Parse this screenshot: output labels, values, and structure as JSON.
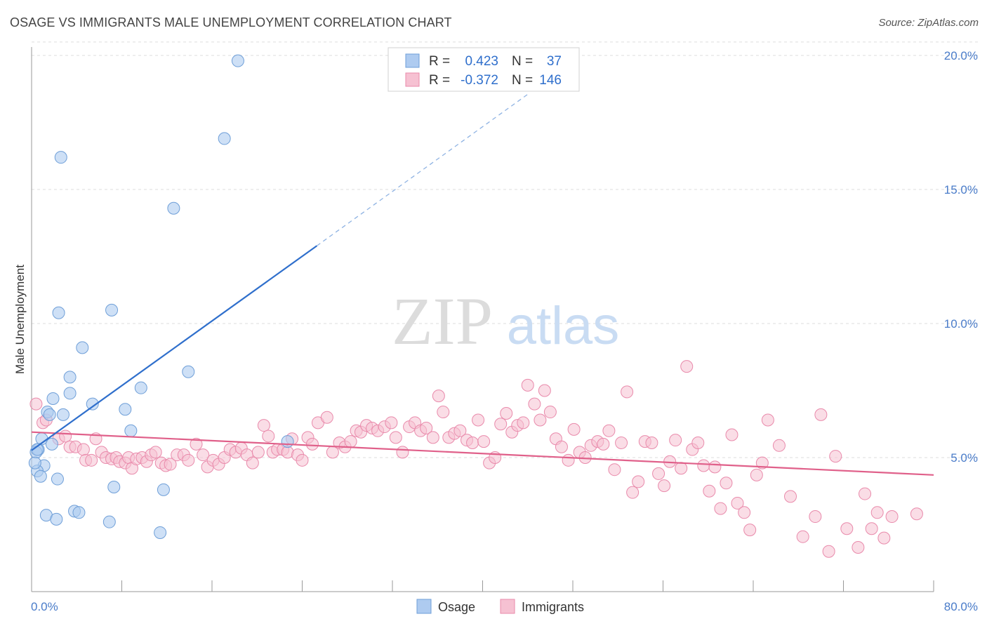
{
  "header": {
    "title": "OSAGE VS IMMIGRANTS MALE UNEMPLOYMENT CORRELATION CHART",
    "source": "Source: ZipAtlas.com"
  },
  "watermark": {
    "zip": "ZIP",
    "atlas": "atlas"
  },
  "legend": {
    "rows": [
      {
        "r_label": "R =",
        "r_value": "0.423",
        "n_label": "N =",
        "n_value": "37"
      },
      {
        "r_label": "R =",
        "r_value": "-0.372",
        "n_label": "N =",
        "n_value": "146"
      }
    ]
  },
  "chart_data": {
    "type": "scatter",
    "title": "OSAGE VS IMMIGRANTS MALE UNEMPLOYMENT CORRELATION CHART",
    "xlabel": "",
    "ylabel": "Male Unemployment",
    "xlim": [
      0,
      80
    ],
    "ylim": [
      0,
      20.5
    ],
    "x_tick_labels": [
      "0.0%",
      "80.0%"
    ],
    "y_ticks": [
      5,
      10,
      15,
      20
    ],
    "y_tick_labels": [
      "5.0%",
      "10.0%",
      "15.0%",
      "20.0%"
    ],
    "grid": true,
    "legend_position": "top-center",
    "colors": {
      "osage_fill": "#aecbf0",
      "osage_stroke": "#6f9fd8",
      "osage_line": "#2f6fcc",
      "immigrants_fill": "#f6c1d2",
      "immigrants_stroke": "#e98aab",
      "immigrants_line": "#e0608a",
      "value_text": "#2f6fcc"
    },
    "series": [
      {
        "name": "Osage",
        "r": 0.423,
        "n": 37,
        "trend": {
          "x_start": 0.0,
          "y_start": 5.27,
          "x_solid_end": 25.3,
          "y_solid_end": 12.9,
          "x_dash_end": 44.0,
          "y_dash_end": 18.55
        },
        "points": [
          [
            18.3,
            19.8
          ],
          [
            17.1,
            16.9
          ],
          [
            2.6,
            16.2
          ],
          [
            12.6,
            14.3
          ],
          [
            7.1,
            10.5
          ],
          [
            2.4,
            10.4
          ],
          [
            4.5,
            9.1
          ],
          [
            13.9,
            8.2
          ],
          [
            3.4,
            8.0
          ],
          [
            9.7,
            7.6
          ],
          [
            3.4,
            7.4
          ],
          [
            1.9,
            7.2
          ],
          [
            5.4,
            7.0
          ],
          [
            8.3,
            6.8
          ],
          [
            1.4,
            6.7
          ],
          [
            2.8,
            6.6
          ],
          [
            1.6,
            6.6
          ],
          [
            8.8,
            6.0
          ],
          [
            0.9,
            5.7
          ],
          [
            1.8,
            5.5
          ],
          [
            22.7,
            5.6
          ],
          [
            0.6,
            5.3
          ],
          [
            0.4,
            5.2
          ],
          [
            1.1,
            4.7
          ],
          [
            0.5,
            4.5
          ],
          [
            0.8,
            4.3
          ],
          [
            2.3,
            4.2
          ],
          [
            7.3,
            3.9
          ],
          [
            11.7,
            3.8
          ],
          [
            3.8,
            3.0
          ],
          [
            4.2,
            2.95
          ],
          [
            1.3,
            2.85
          ],
          [
            2.2,
            2.7
          ],
          [
            6.9,
            2.6
          ],
          [
            11.4,
            2.2
          ],
          [
            0.3,
            4.8
          ],
          [
            0.5,
            5.3
          ]
        ]
      },
      {
        "name": "Immigrants",
        "r": -0.372,
        "n": 146,
        "trend": {
          "x_start": 0.0,
          "y_start": 5.95,
          "x_end": 80.0,
          "y_end": 4.35
        },
        "points": [
          [
            0.4,
            7.0
          ],
          [
            1.0,
            6.3
          ],
          [
            1.3,
            6.4
          ],
          [
            2.4,
            5.7
          ],
          [
            3.0,
            5.8
          ],
          [
            3.4,
            5.4
          ],
          [
            3.9,
            5.4
          ],
          [
            4.6,
            5.3
          ],
          [
            4.8,
            4.9
          ],
          [
            5.3,
            4.9
          ],
          [
            5.7,
            5.7
          ],
          [
            6.2,
            5.2
          ],
          [
            6.6,
            5.0
          ],
          [
            7.1,
            4.95
          ],
          [
            7.5,
            5.0
          ],
          [
            7.8,
            4.85
          ],
          [
            8.3,
            4.8
          ],
          [
            8.6,
            5.0
          ],
          [
            8.9,
            4.6
          ],
          [
            9.3,
            4.95
          ],
          [
            9.8,
            5.0
          ],
          [
            10.2,
            4.85
          ],
          [
            10.6,
            5.1
          ],
          [
            11.0,
            5.2
          ],
          [
            11.5,
            4.8
          ],
          [
            11.9,
            4.7
          ],
          [
            12.3,
            4.75
          ],
          [
            12.9,
            5.1
          ],
          [
            13.5,
            5.1
          ],
          [
            13.9,
            4.9
          ],
          [
            14.6,
            5.5
          ],
          [
            15.2,
            5.1
          ],
          [
            15.6,
            4.65
          ],
          [
            16.1,
            4.9
          ],
          [
            16.6,
            4.75
          ],
          [
            17.1,
            5.0
          ],
          [
            17.6,
            5.3
          ],
          [
            18.1,
            5.2
          ],
          [
            18.6,
            5.35
          ],
          [
            19.1,
            5.1
          ],
          [
            19.6,
            4.8
          ],
          [
            20.1,
            5.2
          ],
          [
            20.6,
            6.2
          ],
          [
            21.0,
            5.8
          ],
          [
            21.4,
            5.2
          ],
          [
            21.8,
            5.3
          ],
          [
            22.3,
            5.3
          ],
          [
            22.7,
            5.2
          ],
          [
            23.1,
            5.7
          ],
          [
            23.6,
            5.1
          ],
          [
            24.0,
            4.9
          ],
          [
            24.5,
            5.75
          ],
          [
            24.9,
            5.5
          ],
          [
            25.4,
            6.3
          ],
          [
            26.2,
            6.5
          ],
          [
            26.7,
            5.2
          ],
          [
            27.3,
            5.55
          ],
          [
            27.8,
            5.4
          ],
          [
            28.3,
            5.6
          ],
          [
            28.8,
            6.0
          ],
          [
            29.2,
            5.95
          ],
          [
            29.7,
            6.2
          ],
          [
            30.2,
            6.1
          ],
          [
            30.7,
            6.0
          ],
          [
            31.3,
            6.15
          ],
          [
            31.9,
            6.3
          ],
          [
            32.3,
            5.75
          ],
          [
            32.9,
            5.2
          ],
          [
            33.5,
            6.15
          ],
          [
            34.0,
            6.3
          ],
          [
            34.5,
            6.0
          ],
          [
            35.0,
            6.1
          ],
          [
            35.6,
            5.75
          ],
          [
            36.1,
            7.3
          ],
          [
            36.5,
            6.7
          ],
          [
            37.0,
            5.75
          ],
          [
            37.5,
            5.9
          ],
          [
            38.0,
            6.0
          ],
          [
            38.6,
            5.65
          ],
          [
            39.1,
            5.55
          ],
          [
            39.6,
            6.4
          ],
          [
            40.1,
            5.6
          ],
          [
            40.6,
            4.8
          ],
          [
            41.1,
            5.0
          ],
          [
            41.6,
            6.25
          ],
          [
            42.1,
            6.65
          ],
          [
            42.6,
            5.95
          ],
          [
            43.1,
            6.2
          ],
          [
            43.6,
            6.3
          ],
          [
            44.0,
            7.7
          ],
          [
            44.6,
            7.0
          ],
          [
            45.1,
            6.4
          ],
          [
            45.5,
            7.5
          ],
          [
            46.0,
            6.7
          ],
          [
            46.5,
            5.7
          ],
          [
            47.0,
            5.4
          ],
          [
            47.6,
            4.9
          ],
          [
            48.1,
            6.05
          ],
          [
            48.6,
            5.2
          ],
          [
            49.1,
            5.0
          ],
          [
            49.6,
            5.45
          ],
          [
            50.2,
            5.6
          ],
          [
            50.7,
            5.5
          ],
          [
            51.2,
            6.0
          ],
          [
            51.7,
            4.55
          ],
          [
            52.3,
            5.55
          ],
          [
            52.8,
            7.45
          ],
          [
            53.3,
            3.7
          ],
          [
            53.8,
            4.1
          ],
          [
            54.4,
            5.6
          ],
          [
            55.0,
            5.55
          ],
          [
            55.6,
            4.4
          ],
          [
            56.1,
            3.95
          ],
          [
            56.6,
            4.85
          ],
          [
            57.1,
            5.65
          ],
          [
            57.6,
            4.6
          ],
          [
            58.1,
            8.4
          ],
          [
            58.6,
            5.3
          ],
          [
            59.1,
            5.55
          ],
          [
            59.6,
            4.7
          ],
          [
            60.1,
            3.75
          ],
          [
            60.6,
            4.65
          ],
          [
            61.1,
            3.1
          ],
          [
            61.6,
            4.05
          ],
          [
            62.1,
            5.85
          ],
          [
            62.6,
            3.3
          ],
          [
            63.2,
            2.95
          ],
          [
            63.7,
            2.3
          ],
          [
            64.3,
            4.35
          ],
          [
            64.8,
            4.8
          ],
          [
            65.3,
            6.4
          ],
          [
            66.3,
            5.45
          ],
          [
            67.3,
            3.55
          ],
          [
            68.4,
            2.05
          ],
          [
            69.5,
            2.8
          ],
          [
            70.0,
            6.6
          ],
          [
            70.7,
            1.5
          ],
          [
            71.3,
            5.05
          ],
          [
            72.3,
            2.35
          ],
          [
            73.3,
            1.65
          ],
          [
            73.9,
            3.65
          ],
          [
            74.5,
            2.35
          ],
          [
            75.0,
            2.95
          ],
          [
            75.6,
            2.0
          ],
          [
            76.3,
            2.8
          ],
          [
            78.5,
            2.9
          ]
        ]
      }
    ]
  },
  "bottom_legend": {
    "osage_label": "Osage",
    "immigrants_label": "Immigrants"
  }
}
